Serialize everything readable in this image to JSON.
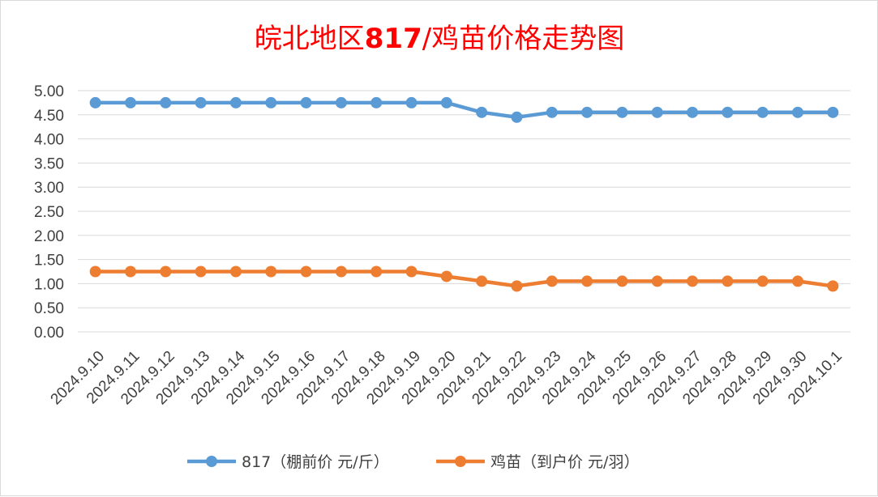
{
  "chart_data": {
    "type": "line",
    "title": "皖北地区817/鸡苗价格走势图",
    "categories": [
      "2024.9.10",
      "2024.9.11",
      "2024.9.12",
      "2024.9.13",
      "2024.9.14",
      "2024.9.15",
      "2024.9.16",
      "2024.9.17",
      "2024.9.18",
      "2024.9.19",
      "2024.9.20",
      "2024.9.21",
      "2024.9.22",
      "2024.9.23",
      "2024.9.24",
      "2024.9.25",
      "2024.9.26",
      "2024.9.27",
      "2024.9.28",
      "2024.9.29",
      "2024.9.30",
      "2024.10.1"
    ],
    "ylim": [
      0,
      5
    ],
    "yticks": [
      "0.00",
      "0.50",
      "1.00",
      "1.50",
      "2.00",
      "2.50",
      "3.00",
      "3.50",
      "4.00",
      "4.50",
      "5.00"
    ],
    "grid": true,
    "legend_position": "bottom",
    "series": [
      {
        "name": "817（棚前价 元/斤）",
        "color": "#5b9bd5",
        "values": [
          4.75,
          4.75,
          4.75,
          4.75,
          4.75,
          4.75,
          4.75,
          4.75,
          4.75,
          4.75,
          4.75,
          4.55,
          4.45,
          4.55,
          4.55,
          4.55,
          4.55,
          4.55,
          4.55,
          4.55,
          4.55,
          4.55
        ]
      },
      {
        "name": "鸡苗（到户价 元/羽）",
        "color": "#ed7d31",
        "values": [
          1.25,
          1.25,
          1.25,
          1.25,
          1.25,
          1.25,
          1.25,
          1.25,
          1.25,
          1.25,
          1.15,
          1.05,
          0.95,
          1.05,
          1.05,
          1.05,
          1.05,
          1.05,
          1.05,
          1.05,
          1.05,
          0.95
        ]
      }
    ]
  }
}
